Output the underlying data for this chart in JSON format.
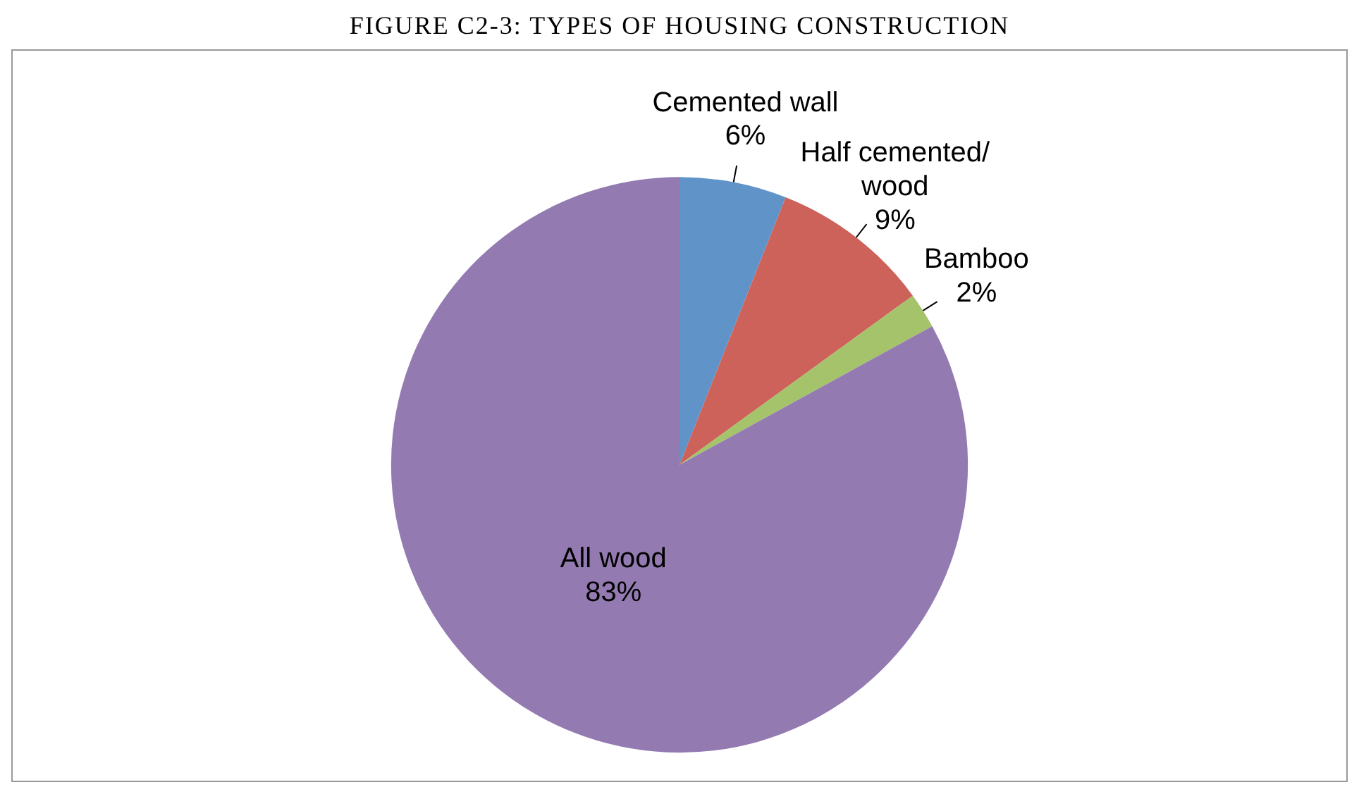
{
  "chart_data": {
    "type": "pie",
    "title": "FIGURE C2-3: TYPES OF HOUSING CONSTRUCTION",
    "categories": [
      "Cemented wall",
      "Half cemented/\nwood",
      "Bamboo",
      "All wood"
    ],
    "values": [
      6,
      9,
      2,
      83
    ],
    "colors": [
      "#6094c9",
      "#cd625b",
      "#a4c36a",
      "#937ab1"
    ],
    "value_labels": [
      "6%",
      "9%",
      "2%",
      "83%"
    ],
    "legend": false
  }
}
